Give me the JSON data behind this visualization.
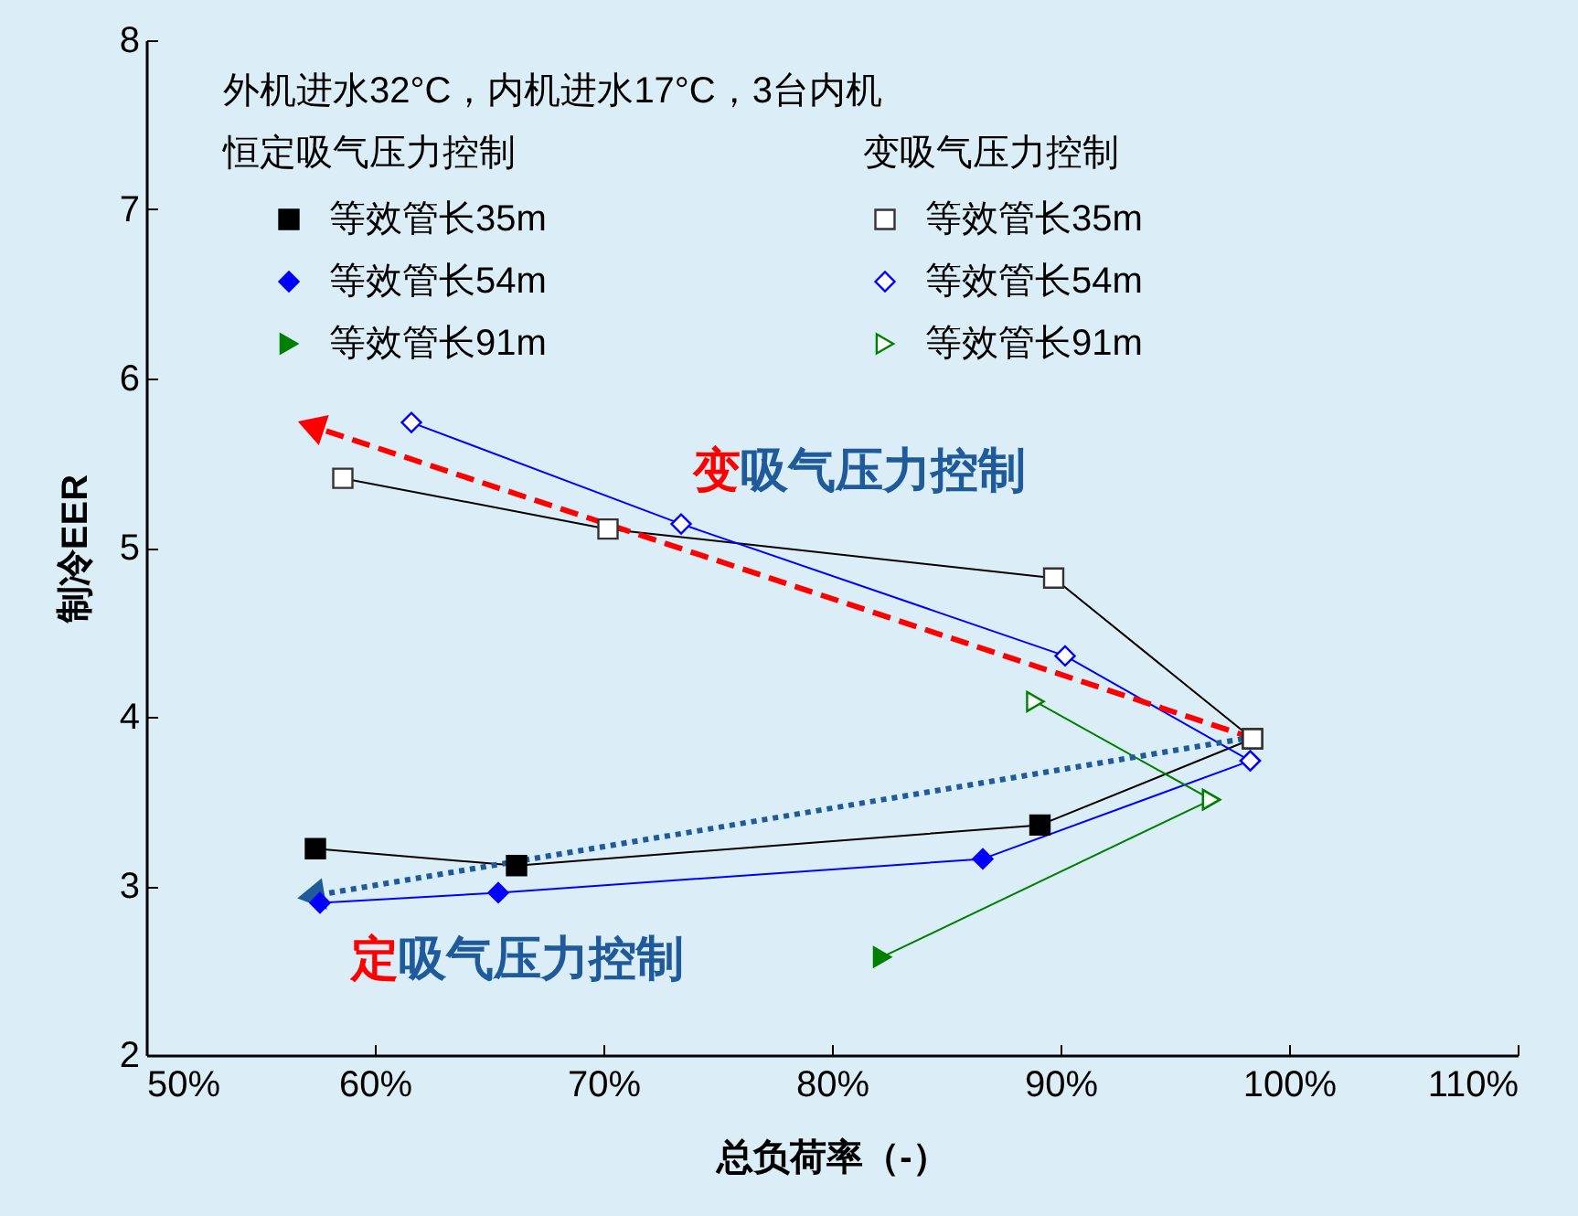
{
  "chart_data": {
    "type": "line",
    "xlabel": "总负荷率（-）",
    "ylabel": "制冷EER",
    "xlim": [
      50,
      110
    ],
    "ylim": [
      2,
      8
    ],
    "xticks": [
      {
        "value": 50,
        "label": "50%"
      },
      {
        "value": 60,
        "label": "60%"
      },
      {
        "value": 70,
        "label": "70%"
      },
      {
        "value": 80,
        "label": "80%"
      },
      {
        "value": 90,
        "label": "90%"
      },
      {
        "value": 100,
        "label": "100%"
      },
      {
        "value": 110,
        "label": "110%"
      }
    ],
    "yticks": [
      2,
      3,
      4,
      5,
      6,
      7,
      8
    ],
    "grid": false,
    "legend": "top left",
    "annotations": [
      "外机进水32°C，内机进水17°C，3台内机",
      "恒定吸气压力控制",
      "变吸气压力控制",
      "变吸气压力控制",
      "定吸气压力控制"
    ],
    "series": [
      {
        "name": "等效管长35m",
        "color": "#000000",
        "marker": "square",
        "x": [
          57.4,
          66.2,
          89.1,
          98.4
        ],
        "values": [
          3.22,
          3.12,
          3.36,
          3.87
        ]
      },
      {
        "name": "等效管长35m",
        "color": "#000000",
        "marker": "square",
        "colors": [
          "#ffffff",
          "#ffffff",
          "#ffffff",
          "#ffffff"
        ],
        "x": [
          58.6,
          70.2,
          89.7,
          98.4
        ],
        "values": [
          5.41,
          5.11,
          4.82,
          3.87
        ]
      },
      {
        "name": "等效管长54m",
        "color": "#0000ff",
        "marker": "diamond",
        "x": [
          57.6,
          65.4,
          86.6,
          98.3
        ],
        "values": [
          2.9,
          2.96,
          3.16,
          3.74
        ]
      },
      {
        "name": "等效管长54m",
        "color": "#0000ff",
        "marker": "diamond",
        "colors": [
          "#ffffff",
          "#ffffff",
          "#ffffff",
          "#ffffff"
        ],
        "x": [
          61.6,
          73.4,
          90.2,
          98.3
        ],
        "values": [
          5.74,
          5.14,
          4.36,
          3.74
        ]
      },
      {
        "name": "等效管长91m",
        "color": "#008000",
        "marker": "triangle",
        "x": [
          82.2,
          96.6
        ],
        "values": [
          2.58,
          3.51
        ]
      },
      {
        "name": "等效管长91m",
        "color": "#008000",
        "marker": "triangle",
        "colors": [
          "#ffffff",
          "#ffffff"
        ],
        "x": [
          88.9,
          96.6
        ],
        "values": [
          4.09,
          3.51
        ]
      },
      {
        "type": "line",
        "color": "#ff0000",
        "line_style": "dashed",
        "x": [
          98.5,
          57.2
        ],
        "values": [
          3.87,
          5.72
        ]
      },
      {
        "type": "line",
        "color": "#1f5b9a",
        "line_style": "dotted",
        "x": [
          98,
          57.2
        ],
        "values": [
          3.87,
          2.94
        ]
      }
    ]
  }
}
